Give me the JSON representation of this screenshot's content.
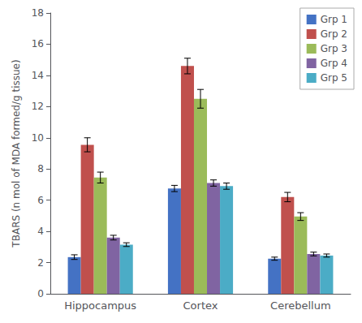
{
  "chart_data": {
    "type": "bar",
    "categories": [
      "Hippocampus",
      "Cortex",
      "Cerebellum"
    ],
    "ylabel": "TBARS (n mol of MDA formed/g tissue)",
    "series": [
      {
        "name": "Grp 1",
        "color": "#4472C4",
        "values": [
          2.35,
          6.75,
          2.25
        ],
        "errors": [
          0.15,
          0.2,
          0.1
        ]
      },
      {
        "name": "Grp 2",
        "color": "#C0504D",
        "values": [
          9.55,
          14.6,
          6.2
        ],
        "errors": [
          0.45,
          0.5,
          0.3
        ]
      },
      {
        "name": "Grp 3",
        "color": "#9BBB59",
        "values": [
          7.45,
          12.5,
          4.95
        ],
        "errors": [
          0.35,
          0.6,
          0.25
        ]
      },
      {
        "name": "Grp 4",
        "color": "#8064A2",
        "values": [
          3.6,
          7.1,
          2.55
        ],
        "errors": [
          0.15,
          0.2,
          0.12
        ]
      },
      {
        "name": "Grp 5",
        "color": "#4BACC6",
        "values": [
          3.15,
          6.9,
          2.45
        ],
        "errors": [
          0.12,
          0.2,
          0.1
        ]
      }
    ],
    "ylim": [
      0,
      18
    ],
    "yticks": [
      0,
      2,
      4,
      6,
      8,
      10,
      12,
      14,
      16,
      18
    ],
    "grid": false,
    "legend": "upper right"
  }
}
